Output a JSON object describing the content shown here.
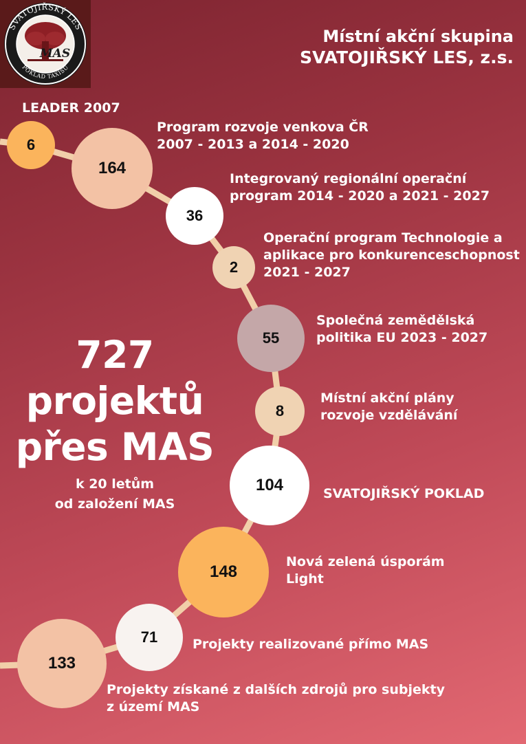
{
  "logo": {
    "ring_text_top": "SVATOJIŘSKÝ LES",
    "ring_text_bottom": "POKLAD TAXISŮ",
    "mark": "MAS",
    "icon": "oak-tree-icon"
  },
  "header": {
    "line1": "Místní akční skupina",
    "line2": "SVATOJIŘSKÝ LES, z.s."
  },
  "summary": {
    "headline": "727\nprojektů\npřes MAS",
    "subline": "k 20 letům\nod založení MAS"
  },
  "programs": [
    {
      "value": "6",
      "label": "LEADER 2007",
      "color": "#fbb45c"
    },
    {
      "value": "164",
      "label": "Program rozvoje venkova ČR\n2007 - 2013 a 2014 - 2020",
      "color": "#f3c2a5"
    },
    {
      "value": "36",
      "label": "Integrovaný regionální operační\nprogram 2014 - 2020 a 2021 - 2027",
      "color": "#ffffff"
    },
    {
      "value": "2",
      "label": "Operační program Technologie a\naplikace pro konkurenceschopnost\n2021 - 2027",
      "color": "#f0d3b3"
    },
    {
      "value": "55",
      "label": "Společná zemědělská\npolitika EU 2023 - 2027",
      "color": "#c4a7a8"
    },
    {
      "value": "8",
      "label": "Místní akční plány\nrozvoje vzdělávání",
      "color": "#f0d3b3"
    },
    {
      "value": "104",
      "label": "SVATOJIŘSKÝ POKLAD",
      "color": "#ffffff"
    },
    {
      "value": "148",
      "label": "Nová zelená úsporám\nLight",
      "color": "#fbb45c"
    },
    {
      "value": "71",
      "label": "Projekty realizované přímo MAS",
      "color": "#f8f3f0"
    },
    {
      "value": "133",
      "label": "Projekty získané z dalších zdrojů pro subjekty\nz území MAS",
      "color": "#f3c2a5"
    }
  ]
}
